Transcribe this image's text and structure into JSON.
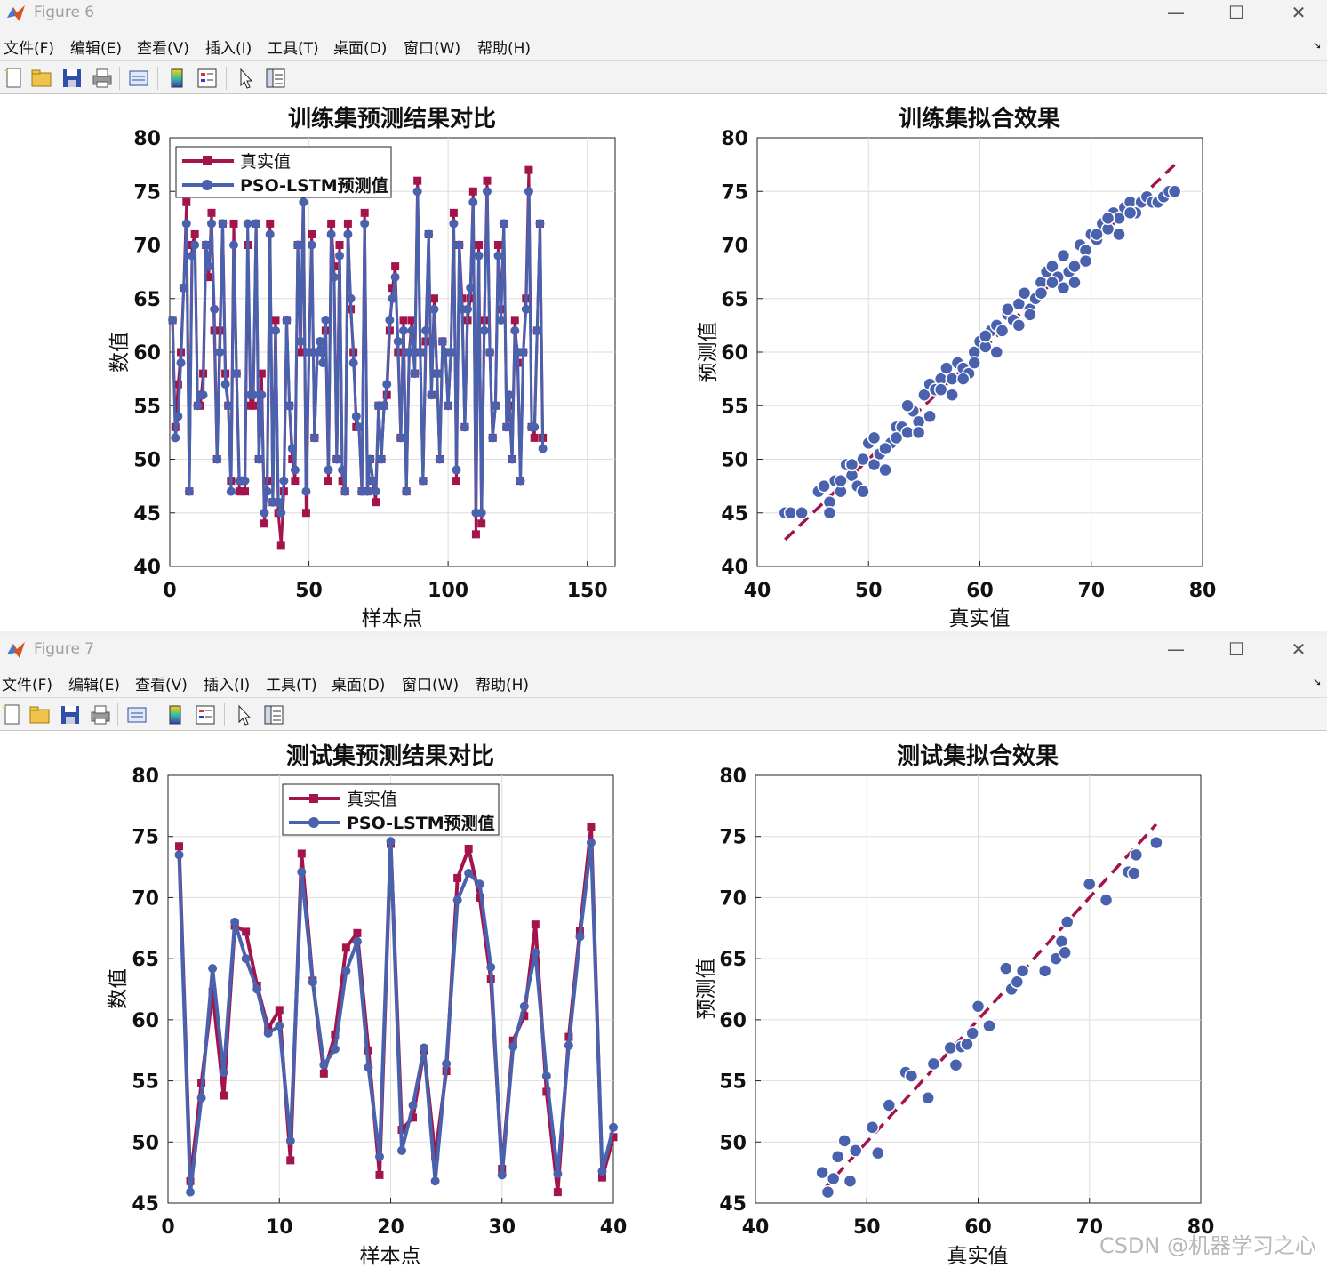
{
  "windows": [
    {
      "title": "Figure 6",
      "menu": [
        "文件(F)",
        "编辑(E)",
        "查看(V)",
        "插入(I)",
        "工具(T)",
        "桌面(D)",
        "窗口(W)",
        "帮助(H)"
      ],
      "toolbar_icons": [
        "new-file-icon",
        "open-folder-icon",
        "save-icon",
        "print-icon",
        "link-plot-icon",
        "colorbar-icon",
        "legend-icon",
        "pointer-icon",
        "property-editor-icon"
      ]
    },
    {
      "title": "Figure 7",
      "menu": [
        "文件(F)",
        "编辑(E)",
        "查看(V)",
        "插入(I)",
        "工具(T)",
        "桌面(D)",
        "窗口(W)",
        "帮助(H)"
      ],
      "toolbar_icons": [
        "new-file-icon",
        "open-folder-icon",
        "save-icon",
        "print-icon",
        "link-plot-icon",
        "colorbar-icon",
        "legend-icon",
        "pointer-icon",
        "property-editor-icon"
      ]
    }
  ],
  "watermark": "CSDN @机器学习之心",
  "colors": {
    "true": "#a2144b",
    "pred": "#4a62ad",
    "grid": "#dedede"
  },
  "chart_data": [
    {
      "type": "line",
      "title": "训练集预测结果对比",
      "xlabel": "样本点",
      "ylabel": "数值",
      "xlim": [
        0,
        160
      ],
      "ylim": [
        40,
        80
      ],
      "xticks": [
        0,
        50,
        100,
        150
      ],
      "yticks": [
        40,
        45,
        50,
        55,
        60,
        65,
        70,
        75,
        80
      ],
      "grid": true,
      "legend": "top-left",
      "series": [
        {
          "name": "真实值",
          "values": [
            63,
            53,
            57,
            60,
            66,
            74,
            47,
            70,
            71,
            55,
            55,
            58,
            70,
            67,
            73,
            62,
            50,
            62,
            72,
            58,
            55,
            48,
            72,
            58,
            47,
            47,
            47,
            70,
            55,
            55,
            72,
            50,
            58,
            44,
            48,
            72,
            46,
            63,
            45,
            42,
            47,
            63,
            55,
            50,
            48,
            70,
            60,
            75,
            45,
            60,
            71,
            52,
            60,
            60,
            60,
            62,
            48,
            72,
            68,
            50,
            70,
            48,
            47,
            72,
            64,
            60,
            53,
            53,
            47,
            73,
            47,
            50,
            48,
            46,
            55,
            50,
            55,
            56,
            62,
            66,
            68,
            60,
            52,
            63,
            47,
            60,
            63,
            58,
            76,
            60,
            48,
            61,
            71,
            56,
            65,
            58,
            50,
            61,
            60,
            55,
            60,
            73,
            48,
            70,
            65,
            53,
            63,
            65,
            75,
            43,
            70,
            44,
            63,
            76,
            60,
            52,
            55,
            70,
            64,
            72,
            53,
            55,
            50,
            63,
            59,
            48,
            60,
            65,
            77,
            53,
            52,
            62,
            72,
            52
          ],
          "x": [
            1,
            2,
            3,
            4,
            5,
            6,
            7,
            8,
            9,
            10,
            11,
            12,
            13,
            14,
            15,
            16,
            17,
            18,
            19,
            20,
            21,
            22,
            23,
            24,
            25,
            26,
            27,
            28,
            29,
            30,
            31,
            32,
            33,
            34,
            35,
            36,
            37,
            38,
            39,
            40,
            41,
            42,
            43,
            44,
            45,
            46,
            47,
            48,
            49,
            50,
            51,
            52,
            53,
            54,
            55,
            56,
            57,
            58,
            59,
            60,
            61,
            62,
            63,
            64,
            65,
            66,
            67,
            68,
            69,
            70,
            71,
            72,
            73,
            74,
            75,
            76,
            77,
            78,
            79,
            80,
            81,
            82,
            83,
            84,
            85,
            86,
            87,
            88,
            89,
            90,
            91,
            92,
            93,
            94,
            95,
            96,
            97,
            98,
            99,
            100,
            101,
            102,
            103,
            104,
            105,
            106,
            107,
            108,
            109,
            110,
            111,
            112,
            113,
            114,
            115,
            116,
            117,
            118,
            119,
            120,
            121,
            122,
            123,
            124,
            125,
            126,
            127,
            128,
            129,
            130,
            131,
            132,
            133,
            134
          ]
        },
        {
          "name": "PSO-LSTM预测值",
          "values": [
            63,
            52,
            54,
            59,
            66,
            72,
            47,
            69,
            70,
            55,
            56,
            56,
            70,
            68,
            72,
            64,
            50,
            60,
            72,
            57,
            55,
            47,
            70,
            58,
            48,
            48,
            48,
            72,
            56,
            56,
            72,
            50,
            56,
            45,
            47,
            71,
            46,
            62,
            46,
            45,
            48,
            63,
            55,
            51,
            49,
            70,
            61,
            74,
            47,
            60,
            70,
            52,
            60,
            61,
            59,
            63,
            49,
            71,
            67,
            50,
            69,
            49,
            47,
            71,
            65,
            59,
            54,
            53,
            47,
            72,
            47,
            50,
            48,
            47,
            55,
            50,
            55,
            57,
            63,
            65,
            67,
            61,
            52,
            62,
            47,
            60,
            62,
            58,
            75,
            60,
            48,
            62,
            71,
            56,
            64,
            58,
            50,
            61,
            60,
            55,
            60,
            72,
            49,
            70,
            64,
            53,
            64,
            66,
            74,
            45,
            69,
            45,
            62,
            75,
            60,
            52,
            55,
            69,
            63,
            72,
            53,
            56,
            50,
            62,
            60,
            48,
            60,
            64,
            75,
            53,
            53,
            62,
            72,
            51
          ],
          "x": [
            1,
            2,
            3,
            4,
            5,
            6,
            7,
            8,
            9,
            10,
            11,
            12,
            13,
            14,
            15,
            16,
            17,
            18,
            19,
            20,
            21,
            22,
            23,
            24,
            25,
            26,
            27,
            28,
            29,
            30,
            31,
            32,
            33,
            34,
            35,
            36,
            37,
            38,
            39,
            40,
            41,
            42,
            43,
            44,
            45,
            46,
            47,
            48,
            49,
            50,
            51,
            52,
            53,
            54,
            55,
            56,
            57,
            58,
            59,
            60,
            61,
            62,
            63,
            64,
            65,
            66,
            67,
            68,
            69,
            70,
            71,
            72,
            73,
            74,
            75,
            76,
            77,
            78,
            79,
            80,
            81,
            82,
            83,
            84,
            85,
            86,
            87,
            88,
            89,
            90,
            91,
            92,
            93,
            94,
            95,
            96,
            97,
            98,
            99,
            100,
            101,
            102,
            103,
            104,
            105,
            106,
            107,
            108,
            109,
            110,
            111,
            112,
            113,
            114,
            115,
            116,
            117,
            118,
            119,
            120,
            121,
            122,
            123,
            124,
            125,
            126,
            127,
            128,
            129,
            130,
            131,
            132,
            133,
            134
          ]
        }
      ]
    },
    {
      "type": "scatter",
      "title": "训练集拟合效果",
      "xlabel": "真实值",
      "ylabel": "预测值",
      "xlim": [
        40,
        80
      ],
      "ylim": [
        40,
        80
      ],
      "xticks": [
        40,
        50,
        60,
        70,
        80
      ],
      "yticks": [
        40,
        45,
        50,
        55,
        60,
        65,
        70,
        75,
        80
      ],
      "grid": true,
      "fit_line": {
        "x": [
          42.5,
          77.5
        ],
        "y": [
          42.5,
          77.5
        ]
      },
      "x": [
        42.5,
        43.0,
        44.0,
        45.5,
        46.0,
        46.5,
        47.0,
        47.5,
        48.0,
        48.5,
        49.0,
        49.5,
        50.0,
        50.5,
        51.0,
        51.5,
        52.0,
        52.5,
        53.0,
        53.5,
        54.0,
        54.5,
        55.0,
        55.5,
        56.0,
        56.5,
        57.0,
        57.5,
        58.0,
        58.5,
        59.0,
        59.5,
        60.0,
        60.5,
        61.0,
        61.5,
        62.0,
        62.5,
        63.0,
        63.5,
        64.0,
        64.5,
        65.0,
        65.5,
        66.0,
        66.5,
        67.0,
        67.5,
        68.0,
        68.5,
        69.0,
        69.5,
        70.0,
        70.5,
        71.0,
        71.5,
        72.0,
        72.5,
        73.0,
        73.5,
        74.0,
        74.5,
        75.0,
        75.5,
        76.0,
        76.5,
        77.0,
        77.5,
        46.5,
        47.5,
        48.5,
        49.5,
        50.5,
        51.5,
        52.5,
        53.5,
        54.5,
        55.5,
        56.5,
        57.5,
        58.5,
        59.5,
        60.5,
        61.5,
        62.5,
        63.5,
        64.5,
        65.5,
        66.5,
        67.5,
        68.5,
        69.5,
        70.5,
        71.5,
        72.5,
        73.5
      ],
      "y": [
        45.0,
        45.0,
        45.0,
        47.0,
        47.5,
        46.0,
        48.0,
        47.0,
        49.5,
        48.5,
        47.5,
        50.0,
        51.5,
        49.5,
        50.5,
        49.0,
        51.5,
        53.0,
        53.0,
        52.5,
        54.5,
        53.5,
        56.0,
        57.0,
        56.5,
        57.5,
        58.5,
        57.5,
        59.0,
        58.5,
        58.0,
        60.0,
        61.0,
        60.5,
        62.0,
        62.5,
        62.0,
        63.5,
        63.0,
        64.5,
        65.5,
        64.0,
        65.0,
        66.5,
        67.5,
        68.0,
        67.0,
        69.0,
        67.5,
        68.0,
        70.0,
        69.5,
        71.0,
        70.5,
        72.0,
        71.5,
        73.0,
        72.5,
        73.5,
        74.0,
        73.0,
        74.0,
        74.5,
        74.0,
        74.0,
        74.5,
        75.0,
        75.0,
        45.0,
        48.0,
        49.5,
        47.0,
        52.0,
        51.0,
        52.0,
        55.0,
        52.5,
        54.0,
        56.5,
        56.0,
        57.5,
        59.0,
        61.5,
        60.0,
        64.0,
        62.5,
        63.5,
        65.5,
        66.5,
        66.0,
        66.5,
        68.5,
        71.0,
        72.5,
        71.0,
        73.0
      ]
    },
    {
      "type": "line",
      "title": "测试集预测结果对比",
      "xlabel": "样本点",
      "ylabel": "数值",
      "xlim": [
        0,
        40
      ],
      "ylim": [
        45,
        80
      ],
      "xticks": [
        0,
        10,
        20,
        30,
        40
      ],
      "yticks": [
        45,
        50,
        55,
        60,
        65,
        70,
        75,
        80
      ],
      "grid": true,
      "legend": "top-center",
      "series": [
        {
          "name": "真实值",
          "x": [
            1,
            2,
            3,
            4,
            5,
            6,
            7,
            8,
            9,
            10,
            11,
            12,
            13,
            14,
            15,
            16,
            17,
            18,
            19,
            20,
            21,
            22,
            23,
            24,
            25,
            26,
            27,
            28,
            29,
            30,
            31,
            32,
            33,
            34,
            35,
            36,
            37,
            38,
            39,
            40
          ],
          "values": [
            74.2,
            46.8,
            54.8,
            62.3,
            53.8,
            67.7,
            67.2,
            62.8,
            59.3,
            60.8,
            48.5,
            73.6,
            63.2,
            55.6,
            58.8,
            65.9,
            67.1,
            57.5,
            47.3,
            74.4,
            51.0,
            52.0,
            57.5,
            48.8,
            55.8,
            71.6,
            74.0,
            70.0,
            63.3,
            47.8,
            58.3,
            60.3,
            67.8,
            54.1,
            45.9,
            58.6,
            67.3,
            75.8,
            47.1,
            50.4
          ]
        },
        {
          "name": "PSO-LSTM预测值",
          "x": [
            1,
            2,
            3,
            4,
            5,
            6,
            7,
            8,
            9,
            10,
            11,
            12,
            13,
            14,
            15,
            16,
            17,
            18,
            19,
            20,
            21,
            22,
            23,
            24,
            25,
            26,
            27,
            28,
            29,
            30,
            31,
            32,
            33,
            34,
            35,
            36,
            37,
            38,
            39,
            40
          ],
          "values": [
            73.5,
            45.9,
            53.6,
            64.2,
            55.7,
            68.0,
            65.0,
            62.5,
            58.9,
            59.5,
            50.1,
            72.1,
            63.1,
            56.3,
            57.6,
            64.0,
            66.4,
            56.1,
            48.8,
            74.6,
            49.3,
            53.0,
            57.7,
            46.8,
            56.4,
            69.8,
            72.0,
            71.1,
            64.3,
            47.3,
            57.8,
            61.1,
            65.5,
            55.4,
            47.4,
            57.9,
            66.8,
            74.5,
            47.6,
            51.2
          ]
        }
      ]
    },
    {
      "type": "scatter",
      "title": "测试集拟合效果",
      "xlabel": "真实值",
      "ylabel": "预测值",
      "xlim": [
        40,
        80
      ],
      "ylim": [
        45,
        80
      ],
      "xticks": [
        40,
        50,
        60,
        70,
        80
      ],
      "yticks": [
        45,
        50,
        55,
        60,
        65,
        70,
        75,
        80
      ],
      "grid": true,
      "fit_line": {
        "x": [
          46,
          76
        ],
        "y": [
          46,
          76
        ]
      },
      "x": [
        46.0,
        46.5,
        47.0,
        47.4,
        48.0,
        48.5,
        49.0,
        50.5,
        51.0,
        52.0,
        53.5,
        54.0,
        55.5,
        56.0,
        57.5,
        58.0,
        58.5,
        59.0,
        59.5,
        60.0,
        61.0,
        62.5,
        63.0,
        63.5,
        64.0,
        66.0,
        67.0,
        67.5,
        67.8,
        68.0,
        70.0,
        71.5,
        73.5,
        74.0,
        74.2,
        76.0
      ],
      "y": [
        47.5,
        45.9,
        47.0,
        48.8,
        50.1,
        46.8,
        49.3,
        51.2,
        49.1,
        53.0,
        55.7,
        55.4,
        53.6,
        56.4,
        57.7,
        56.3,
        57.8,
        58.0,
        58.9,
        61.1,
        59.5,
        64.2,
        62.5,
        63.1,
        64.0,
        64.0,
        65.0,
        66.4,
        65.5,
        68.0,
        71.1,
        69.8,
        72.1,
        72.0,
        73.5,
        74.5
      ]
    }
  ]
}
